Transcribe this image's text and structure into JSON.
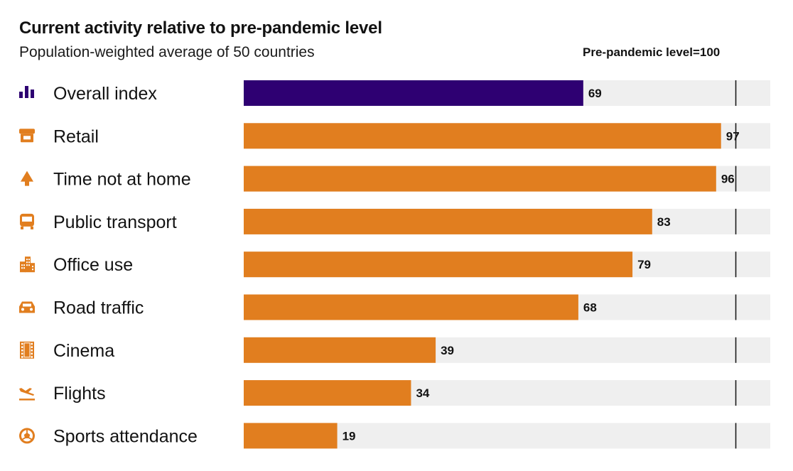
{
  "chart_data": {
    "type": "bar",
    "orientation": "horizontal",
    "title": "Current activity relative to pre-pandemic level",
    "subtitle": "Population-weighted average of 50 countries",
    "reference_label": "Pre-pandemic level=100",
    "reference_value": 100,
    "xlim": [
      0,
      107
    ],
    "categories": [
      "Overall index",
      "Retail",
      "Time not at home",
      "Public transport",
      "Office use",
      "Road traffic",
      "Cinema",
      "Flights",
      "Sports attendance"
    ],
    "values": [
      69,
      97,
      96,
      83,
      79,
      68,
      39,
      34,
      19
    ],
    "icons": [
      "bar-chart-icon",
      "storefront-icon",
      "tree-icon",
      "bus-icon",
      "office-building-icon",
      "car-icon",
      "film-icon",
      "plane-landing-icon",
      "football-icon"
    ],
    "colors": {
      "highlight": "#2e0072",
      "bar": "#e17e1f",
      "track": "#efefef",
      "reference": "#1a1a1a"
    }
  }
}
